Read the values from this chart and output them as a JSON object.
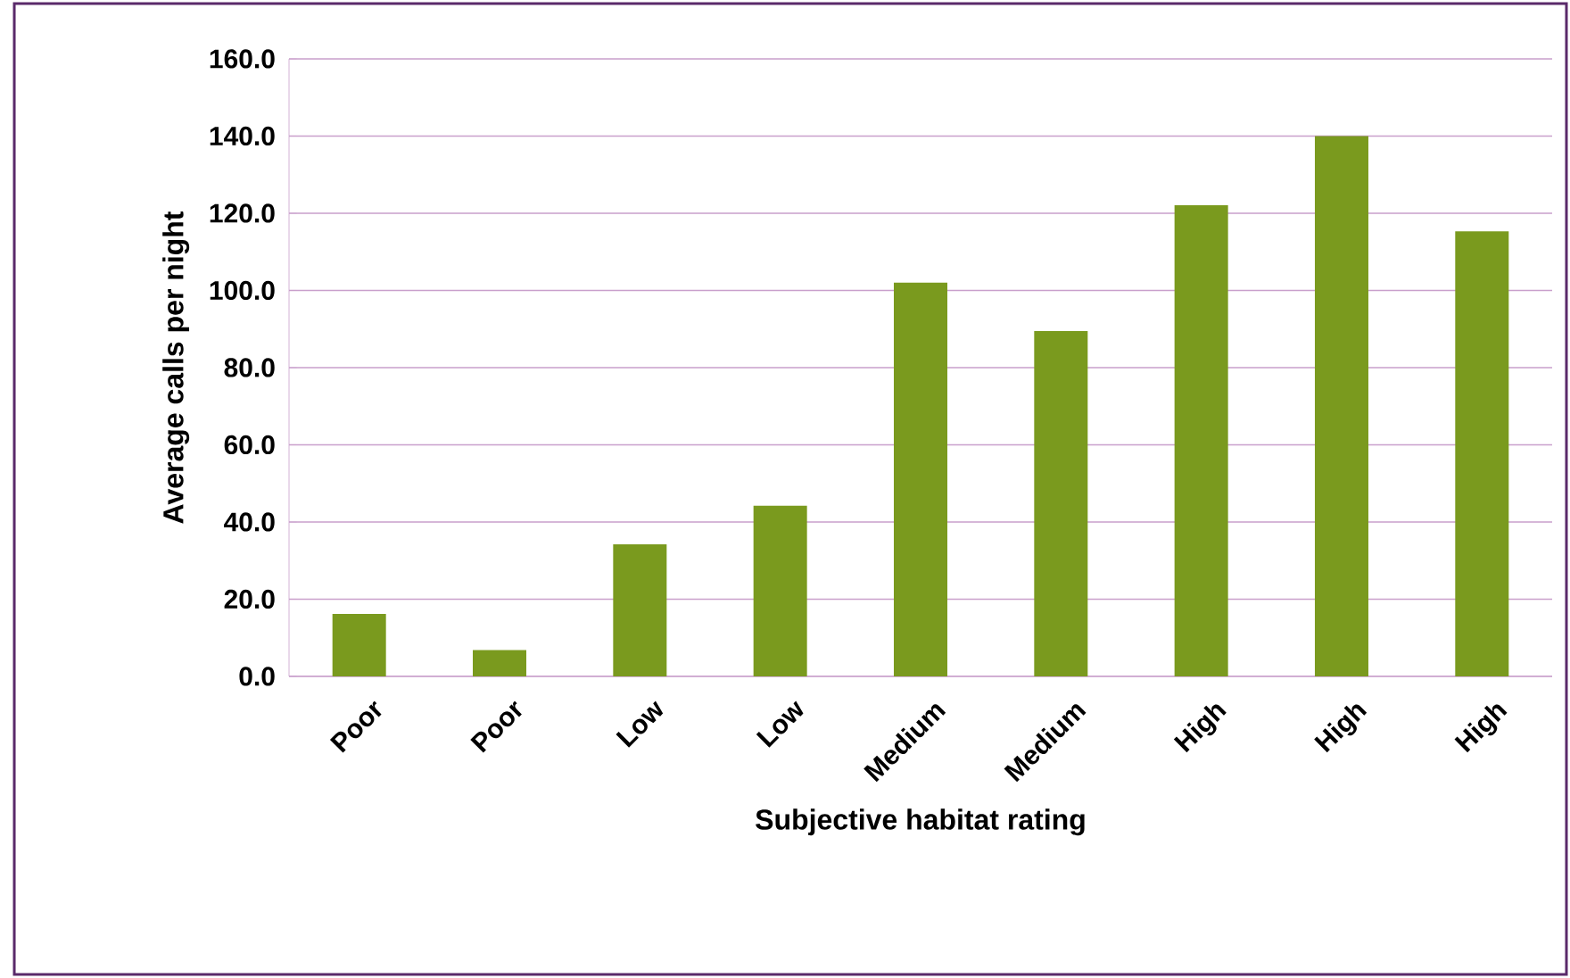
{
  "chart_data": {
    "type": "bar",
    "xlabel": "Subjective habitat rating",
    "ylabel": "Average calls per night",
    "categories": [
      "Poor",
      "Poor",
      "Low",
      "Low",
      "Medium",
      "Medium",
      "High",
      "High",
      "High"
    ],
    "values": [
      16.2,
      6.8,
      34.2,
      44.2,
      102,
      89.5,
      122.1,
      140,
      115.3
    ],
    "color": "#7a9a1e",
    "ylim": [
      0,
      160
    ],
    "yticks": [
      {
        "value": 0,
        "label": "0.0"
      },
      {
        "value": 20,
        "label": "20.0"
      },
      {
        "value": 40,
        "label": "40.0"
      },
      {
        "value": 60,
        "label": "60.0"
      },
      {
        "value": 80,
        "label": "80.0"
      },
      {
        "value": 100,
        "label": "100.0"
      },
      {
        "value": 120,
        "label": "120.0"
      },
      {
        "value": 140,
        "label": "140.0"
      },
      {
        "value": 160,
        "label": "160.0"
      }
    ],
    "grid": "y"
  }
}
